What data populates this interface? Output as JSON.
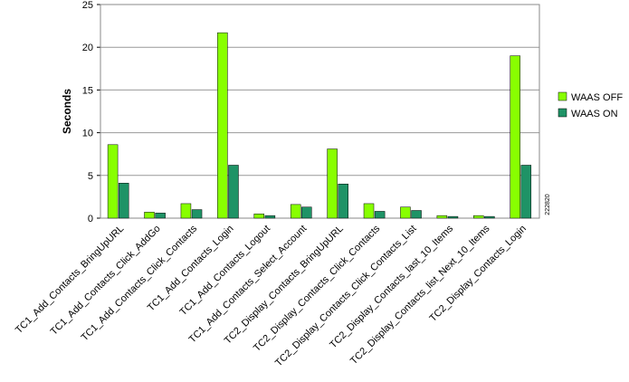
{
  "chart_data": {
    "type": "bar",
    "y_label": "Seconds",
    "figure_id": "222820",
    "categories": [
      "TC1_Add_Contacts_BringUpURL",
      "TC1_Add_Contacts_Click_AddGo",
      "TC1_Add_Contacts_Click_Contacts",
      "TC1_Add_Contacts_Login",
      "TC1_Add_Contacts_Logout",
      "TC1_Add_Contacts_Select_Account",
      "TC2_Display_Contacts_BringUpURL",
      "TC2_Display_Contacts_Click_Contacts",
      "TC2_Display_Contacts_Click_Contacts_List",
      "TC2_Display_Contacts_last_10_Items",
      "TC2_Display_Contacts_list_Next_10_Items",
      "TC2_Display_Contacts_Login"
    ],
    "series": [
      {
        "name": "WAAS OFF",
        "color": "#88ff00",
        "values": [
          8.6,
          0.7,
          1.7,
          21.7,
          0.5,
          1.6,
          8.1,
          1.7,
          1.3,
          0.3,
          0.3,
          19.0
        ]
      },
      {
        "name": "WAAS ON",
        "color": "#1f9366",
        "values": [
          4.1,
          0.6,
          1.0,
          6.2,
          0.3,
          1.3,
          4.0,
          0.8,
          0.9,
          0.2,
          0.2,
          6.2
        ]
      }
    ],
    "ylim": [
      0,
      25
    ],
    "yticks": [
      0,
      5,
      10,
      15,
      20,
      25
    ],
    "grid": true,
    "legend": "right"
  }
}
